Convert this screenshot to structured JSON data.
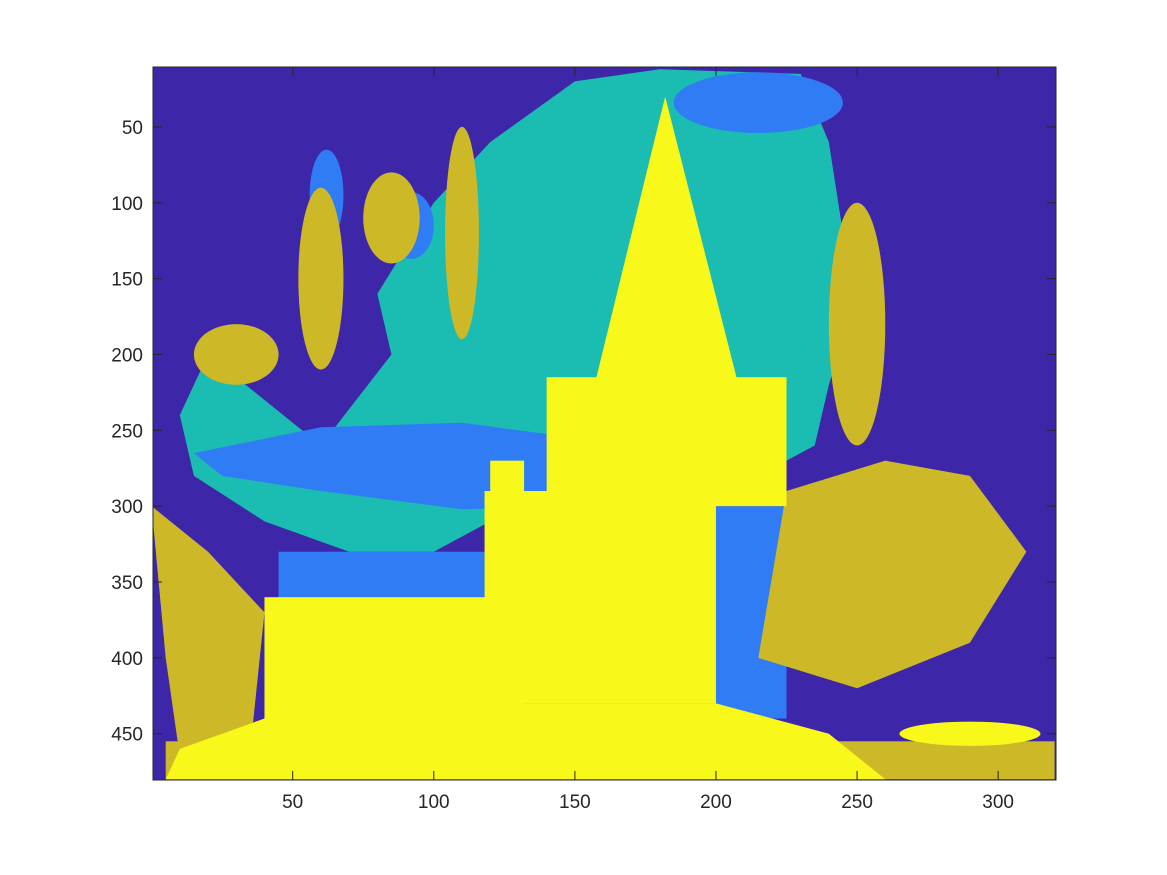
{
  "chart_data": {
    "type": "heatmap",
    "title": "",
    "xlabel": "",
    "ylabel": "",
    "colormap": {
      "levels": [
        1,
        2,
        3,
        4,
        5
      ],
      "colors": [
        "#3d26a8",
        "#2f7cf5",
        "#1bbcb1",
        "#cdb927",
        "#f8f81a"
      ]
    },
    "xlim": [
      0.5,
      320.5
    ],
    "ylim": [
      480.5,
      10.5
    ],
    "y_reversed": true,
    "grid": false,
    "legend": "none",
    "xticks": [
      50,
      100,
      150,
      200,
      250,
      300
    ],
    "yticks": [
      50,
      100,
      150,
      200,
      250,
      300,
      350,
      400,
      450
    ],
    "regions": [
      {
        "class": 3,
        "shape": "polygon",
        "points": [
          [
            60,
            260
          ],
          [
            85,
            200
          ],
          [
            80,
            160
          ],
          [
            100,
            100
          ],
          [
            120,
            60
          ],
          [
            150,
            20
          ],
          [
            180,
            12
          ],
          [
            230,
            15
          ],
          [
            240,
            60
          ],
          [
            245,
            120
          ],
          [
            250,
            160
          ],
          [
            240,
            220
          ],
          [
            235,
            260
          ],
          [
            220,
            275
          ],
          [
            175,
            275
          ],
          [
            130,
            300
          ],
          [
            100,
            330
          ],
          [
            70,
            330
          ],
          [
            40,
            310
          ],
          [
            15,
            280
          ],
          [
            10,
            240
          ],
          [
            20,
            200
          ]
        ]
      },
      {
        "class": 2,
        "shape": "ellipse",
        "cx": 215,
        "cy": 34,
        "rx": 30,
        "ry": 20
      },
      {
        "class": 2,
        "shape": "polygon",
        "points": [
          [
            15,
            265
          ],
          [
            60,
            248
          ],
          [
            110,
            245
          ],
          [
            150,
            255
          ],
          [
            155,
            300
          ],
          [
            110,
            302
          ],
          [
            60,
            290
          ],
          [
            25,
            280
          ]
        ]
      },
      {
        "class": 2,
        "shape": "rect",
        "x": [
          45,
          118
        ],
        "y": [
          330,
          368
        ]
      },
      {
        "class": 2,
        "shape": "rect",
        "x": [
          120,
          225
        ],
        "y": [
          300,
          440
        ]
      },
      {
        "class": 2,
        "shape": "rect",
        "x": [
          155,
          220
        ],
        "y": [
          235,
          290
        ]
      },
      {
        "class": 2,
        "shape": "ellipse",
        "cx": 62,
        "cy": 95,
        "rx": 6,
        "ry": 30
      },
      {
        "class": 2,
        "shape": "ellipse",
        "cx": 92,
        "cy": 115,
        "rx": 8,
        "ry": 22
      },
      {
        "class": 4,
        "shape": "polygon",
        "points": [
          [
            225,
            290
          ],
          [
            260,
            270
          ],
          [
            290,
            280
          ],
          [
            310,
            330
          ],
          [
            290,
            390
          ],
          [
            250,
            420
          ],
          [
            215,
            400
          ]
        ]
      },
      {
        "class": 4,
        "shape": "rect",
        "x": [
          5,
          320
        ],
        "y": [
          455,
          480
        ]
      },
      {
        "class": 4,
        "shape": "polygon",
        "points": [
          [
            0,
            300
          ],
          [
            20,
            330
          ],
          [
            40,
            370
          ],
          [
            35,
            460
          ],
          [
            10,
            465
          ],
          [
            5,
            400
          ]
        ]
      },
      {
        "class": 4,
        "shape": "ellipse",
        "cx": 60,
        "cy": 150,
        "rx": 8,
        "ry": 60
      },
      {
        "class": 4,
        "shape": "ellipse",
        "cx": 110,
        "cy": 120,
        "rx": 6,
        "ry": 70
      },
      {
        "class": 4,
        "shape": "ellipse",
        "cx": 250,
        "cy": 180,
        "rx": 10,
        "ry": 80
      },
      {
        "class": 4,
        "shape": "ellipse",
        "cx": 85,
        "cy": 110,
        "rx": 10,
        "ry": 30
      },
      {
        "class": 4,
        "shape": "ellipse",
        "cx": 30,
        "cy": 200,
        "rx": 15,
        "ry": 20
      },
      {
        "class": 5,
        "shape": "polygon",
        "points": [
          [
            155,
            235
          ],
          [
            182,
            30
          ],
          [
            210,
            235
          ]
        ]
      },
      {
        "class": 5,
        "shape": "rect",
        "x": [
          140,
          225
        ],
        "y": [
          215,
          300
        ]
      },
      {
        "class": 5,
        "shape": "rect",
        "x": [
          118,
          200
        ],
        "y": [
          290,
          430
        ]
      },
      {
        "class": 5,
        "shape": "rect",
        "x": [
          40,
          125
        ],
        "y": [
          360,
          455
        ]
      },
      {
        "class": 5,
        "shape": "polygon",
        "points": [
          [
            5,
            480
          ],
          [
            10,
            460
          ],
          [
            40,
            440
          ],
          [
            120,
            430
          ],
          [
            200,
            430
          ],
          [
            240,
            450
          ],
          [
            260,
            480
          ]
        ]
      },
      {
        "class": 5,
        "shape": "ellipse",
        "cx": 290,
        "cy": 450,
        "rx": 25,
        "ry": 8
      },
      {
        "class": 5,
        "shape": "rect",
        "x": [
          120,
          132
        ],
        "y": [
          270,
          470
        ]
      }
    ]
  }
}
